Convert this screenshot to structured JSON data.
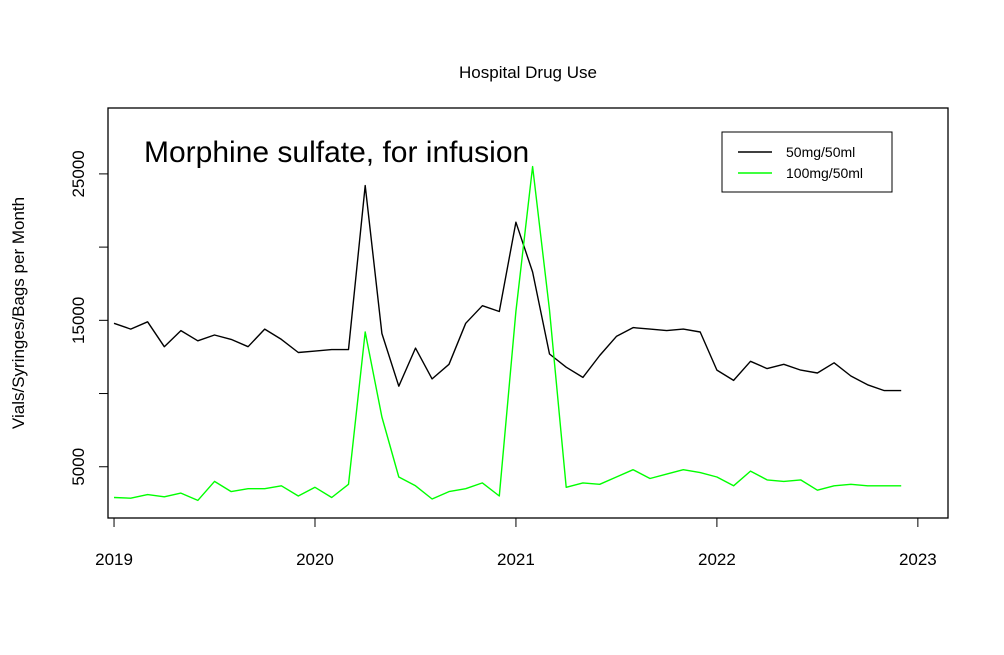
{
  "chart_data": {
    "type": "line",
    "title": "Hospital Drug Use",
    "annotation": "Morphine sulfate, for infusion",
    "ylabel": "Vials/Syringes/Bags per Month",
    "xlabel": "",
    "xlim": [
      2018.97,
      2023.15
    ],
    "ylim": [
      1500,
      29500
    ],
    "x_ticks": [
      2019,
      2020,
      2021,
      2022,
      2023
    ],
    "x_tick_labels": [
      "2019",
      "2020",
      "2021",
      "2022",
      "2023"
    ],
    "y_ticks": [
      5000,
      10000,
      15000,
      20000,
      25000
    ],
    "y_tick_labels": [
      "5000",
      "",
      "15000",
      "",
      "25000"
    ],
    "legend_position": "top-right",
    "x": [
      2019.0,
      2019.083,
      2019.167,
      2019.25,
      2019.333,
      2019.417,
      2019.5,
      2019.583,
      2019.667,
      2019.75,
      2019.833,
      2019.917,
      2020.0,
      2020.083,
      2020.167,
      2020.25,
      2020.333,
      2020.417,
      2020.5,
      2020.583,
      2020.667,
      2020.75,
      2020.833,
      2020.917,
      2021.0,
      2021.083,
      2021.167,
      2021.25,
      2021.333,
      2021.417,
      2021.5,
      2021.583,
      2021.667,
      2021.75,
      2021.833,
      2021.917,
      2022.0,
      2022.083,
      2022.167,
      2022.25,
      2022.333,
      2022.417,
      2022.5,
      2022.583,
      2022.667,
      2022.75,
      2022.833,
      2022.917
    ],
    "series": [
      {
        "name": "50mg/50ml",
        "color": "#000000",
        "values": [
          14800,
          14400,
          14900,
          13200,
          14300,
          13600,
          14000,
          13700,
          13200,
          14400,
          13700,
          12800,
          12900,
          13000,
          13000,
          24200,
          14100,
          10500,
          13100,
          11000,
          12000,
          14800,
          16000,
          15600,
          21700,
          18300,
          12700,
          11800,
          11100,
          12600,
          13900,
          14500,
          14400,
          14300,
          14400,
          14200,
          11600,
          10900,
          12200,
          11700,
          12000,
          11600,
          11400,
          12100,
          11200,
          10600,
          10200,
          10200
        ]
      },
      {
        "name": "100mg/50ml",
        "color": "#00ff00",
        "values": [
          2900,
          2850,
          3100,
          2950,
          3200,
          2700,
          4000,
          3300,
          3500,
          3500,
          3700,
          3000,
          3600,
          2900,
          3800,
          14200,
          8400,
          4300,
          3700,
          2800,
          3300,
          3500,
          3900,
          3000,
          15600,
          25500,
          15700,
          3600,
          3900,
          3800,
          4300,
          4800,
          4200,
          4500,
          4800,
          4600,
          4300,
          3700,
          4700,
          4100,
          4000,
          4100,
          3400,
          3700,
          3800,
          3700,
          3700,
          3700
        ]
      }
    ]
  }
}
